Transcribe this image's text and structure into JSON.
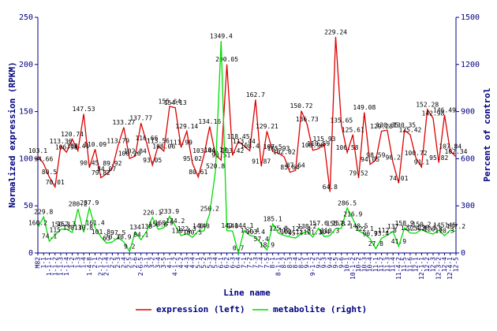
{
  "chart_data": {
    "type": "line",
    "xlabel": "Line name",
    "ylabel": "Normalized expression (RPKM)",
    "y2label": "Percent of control",
    "categories": [
      "M82",
      "1-1",
      "1-1-1",
      "1-1-2",
      "1-1-3",
      "1-1-4",
      "1-2",
      "1-3",
      "1-4",
      "1-4-8",
      "2-1",
      "2-1-2",
      "2-1-4",
      "2-2",
      "2-3",
      "2-4",
      "2-5",
      "2-6",
      "2-6-5",
      "3-1",
      "3-2",
      "3-4",
      "3-5",
      "4-1",
      "4-1-2",
      "4-2",
      "4-3",
      "4-4",
      "5-1",
      "5-2",
      "5-3",
      "5-4",
      "6-1",
      "6-2",
      "6-3",
      "6-4",
      "7-1",
      "7-2",
      "7-3",
      "7-4",
      "7-5",
      "8-1",
      "8-1-1",
      "8-2",
      "8-3",
      "8-4",
      "8-5",
      "9-1",
      "9-1-2",
      "9-2",
      "9-3",
      "9-4",
      "9-5",
      "9-6",
      "10-1",
      "10-1-2",
      "10-2",
      "10-3",
      "10-4",
      "11-1",
      "11-2",
      "11-3",
      "11-4",
      "11-4-2",
      "11-5",
      "11-6",
      "12-1",
      "12-1-1",
      "12-2",
      "12-3",
      "12-3-2",
      "12-4",
      "12-4-1",
      "12-5"
    ],
    "series": [
      {
        "name": "expression (left)",
        "color": "#dd0000",
        "axis": "y",
        "values": [
          103.1,
          94.66,
          80.5,
          70.01,
          113.36,
          106.98,
          120.74,
          108.41,
          147.53,
          90.45,
          110.09,
          79.82,
          84.07,
          89.92,
          113.79,
          133.27,
          100.26,
          102.84,
          137.77,
          116.66,
          93.05,
          113.56,
          108.06,
          155.64,
          154.13,
          111.99,
          129.14,
          95.02,
          80.61,
          103.44,
          134.16,
          104.17,
          98.51,
          200.05,
          103.42,
          118.45,
          113.44,
          108.4,
          162.7,
          91.87,
          129.21,
          107.5,
          105.93,
          102.02,
          85.64,
          87.64,
          150.72,
          136.73,
          108.96,
          110.59,
          115.93,
          64.8,
          229.24,
          135.65,
          106.58,
          125.61,
          79.52,
          149.08,
          94.05,
          98.59,
          129.28,
          130.35,
          96.2,
          74.01,
          130.35,
          125.42,
          100.72,
          91.1,
          152.28,
          142.98,
          95.82,
          146.49,
          107.84,
          102.34
        ]
      },
      {
        "name": "metabolite (right)",
        "color": "#00dd00",
        "axis": "y2",
        "values": [
          160.2,
          229.8,
          74.1,
          115.0,
          150.3,
          152.3,
          130.1,
          280.2,
          130.8,
          287.9,
          161.4,
          101.8,
          63.0,
          70.3,
          97.5,
          70.9,
          9.2,
          134.0,
          84.1,
          138.0,
          226.1,
          150.6,
          160.9,
          233.9,
          174.2,
          110.4,
          122.3,
          100.5,
          140.0,
          140.0,
          250.2,
          520.8,
          1349.4,
          142.0,
          140.0,
          0.7,
          144.1,
          112.4,
          103.4,
          57.4,
          18.9,
          185.1,
          125.8,
          112.0,
          102.1,
          95.4,
          122.4,
          138.2,
          101.3,
          157.6,
          104.0,
          110.3,
          155.8,
          157.2,
          286.5,
          216.9,
          140.5,
          122.1,
          90.7,
          27.8,
          93.4,
          112.8,
          137.0,
          41.9,
          158.9,
          127.4,
          125.2,
          150.2,
          130.5,
          120.8,
          145.0,
          110.3,
          145.0,
          137.2
        ]
      }
    ],
    "ylim": [
      0,
      250
    ],
    "yticks": [
      0,
      50,
      100,
      150,
      200,
      250
    ],
    "y2lim": [
      0,
      1500
    ],
    "y2ticks": [
      0,
      300,
      600,
      900,
      1200,
      1500
    ],
    "axis_color": "#000080"
  }
}
